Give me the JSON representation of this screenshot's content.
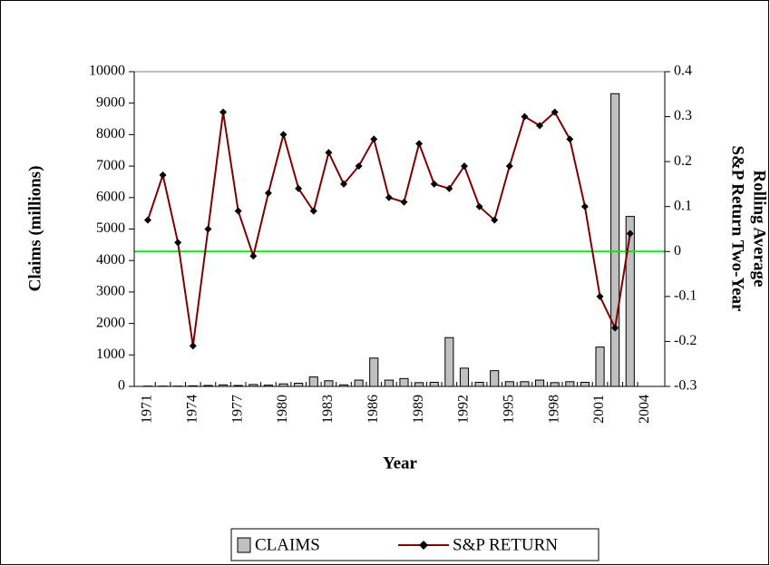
{
  "chart_data": {
    "type": "bar_line",
    "xlabel": "Year",
    "ylabel": "Claims (millions)",
    "y2label": [
      "S&P Return Two-Year",
      "Rolling Average"
    ],
    "x": [
      1971,
      1972,
      1973,
      1974,
      1975,
      1976,
      1977,
      1978,
      1979,
      1980,
      1981,
      1982,
      1983,
      1984,
      1985,
      1986,
      1987,
      1988,
      1989,
      1990,
      1991,
      1992,
      1993,
      1994,
      1995,
      1996,
      1997,
      1998,
      1999,
      2000,
      2001,
      2002,
      2003
    ],
    "xlim": [
      1970.1,
      2005.3
    ],
    "xticks": [
      1971,
      1974,
      1977,
      1980,
      1983,
      1986,
      1989,
      1992,
      1995,
      1998,
      2001,
      2004
    ],
    "ylim": [
      0,
      10000
    ],
    "yticks": [
      0,
      1000,
      2000,
      3000,
      4000,
      5000,
      6000,
      7000,
      8000,
      9000,
      10000
    ],
    "y2lim": [
      -0.3,
      0.4
    ],
    "y2ticks": [
      -0.3,
      -0.2,
      -0.1,
      0,
      0.1,
      0.2,
      0.3,
      0.4
    ],
    "reference_line": {
      "value": 0,
      "axis": "y2",
      "color": "#00ee00"
    },
    "series": [
      {
        "name": "CLAIMS",
        "kind": "bar",
        "color": "#c0c0c0",
        "values": [
          10,
          10,
          10,
          20,
          30,
          50,
          30,
          60,
          40,
          80,
          100,
          300,
          180,
          50,
          200,
          900,
          200,
          250,
          120,
          130,
          1550,
          580,
          130,
          500,
          150,
          150,
          200,
          120,
          150,
          130,
          1250,
          9300,
          5400
        ]
      },
      {
        "name": "S&P RETURN",
        "kind": "line",
        "axis": "y2",
        "color": "#800000",
        "marker_color": "#000000",
        "values": [
          0.07,
          0.17,
          0.02,
          -0.21,
          0.05,
          0.31,
          0.09,
          -0.01,
          0.13,
          0.26,
          0.14,
          0.09,
          0.22,
          0.15,
          0.19,
          0.25,
          0.12,
          0.11,
          0.24,
          0.15,
          0.14,
          0.19,
          0.1,
          0.07,
          0.19,
          0.3,
          0.28,
          0.31,
          0.25,
          0.1,
          -0.1,
          -0.17,
          0.04
        ]
      }
    ]
  }
}
